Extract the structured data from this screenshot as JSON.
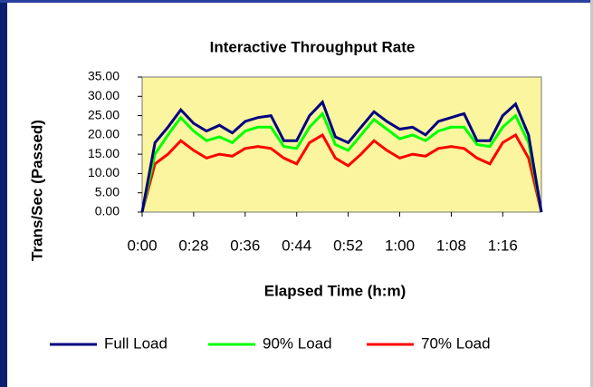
{
  "chart_data": {
    "type": "line",
    "title": "Interactive Throughput Rate",
    "y_label": "Trans/Sec (Passed)",
    "x_label": "Elapsed Time (h:m)",
    "categories": [
      "0:00",
      null,
      null,
      null,
      "0:28",
      null,
      null,
      null,
      "0:36",
      null,
      null,
      null,
      "0:44",
      null,
      null,
      null,
      "0:52",
      null,
      null,
      null,
      "1:00",
      null,
      null,
      null,
      "1:08",
      null,
      null,
      null,
      "1:16",
      null,
      null,
      null
    ],
    "series": [
      {
        "name": "Full Load",
        "color": "#000080",
        "values": [
          0,
          18,
          22,
          26.5,
          23,
          21,
          22.5,
          20.5,
          23.5,
          24.5,
          25,
          18.5,
          18.5,
          25,
          28.5,
          19.5,
          18,
          22,
          26,
          23.5,
          21.5,
          22,
          20,
          23.5,
          24.5,
          25.5,
          18.5,
          18.5,
          25,
          28,
          20,
          0
        ]
      },
      {
        "name": "90% Load",
        "color": "#00ff00",
        "values": [
          0,
          15,
          20,
          24.5,
          21,
          18.5,
          19.5,
          18,
          21,
          22,
          22,
          17,
          16.5,
          22,
          25.5,
          17.5,
          16,
          20,
          24,
          21.5,
          19,
          20,
          18.5,
          21,
          22,
          22,
          17.5,
          17,
          22,
          25,
          18,
          0
        ]
      },
      {
        "name": "70% Load",
        "color": "#ff0000",
        "values": [
          0,
          12.5,
          15,
          18.5,
          16,
          14,
          15,
          14.5,
          16.5,
          17,
          16.5,
          14,
          12.5,
          18,
          20,
          14,
          12,
          15,
          18.5,
          16,
          14,
          15,
          14.5,
          16.5,
          17,
          16.5,
          14,
          12.5,
          18,
          20,
          14,
          0
        ]
      }
    ],
    "ylim": [
      0,
      35
    ],
    "yticks": [
      {
        "value": 0,
        "label": "0.00"
      },
      {
        "value": 5,
        "label": "5.00"
      },
      {
        "value": 10,
        "label": "10.00"
      },
      {
        "value": 15,
        "label": "15.00"
      },
      {
        "value": 20,
        "label": "20.00"
      },
      {
        "value": 25,
        "label": "25.00"
      },
      {
        "value": 30,
        "label": "30.00"
      },
      {
        "value": 35,
        "label": "35.00"
      }
    ],
    "legend": "bottom"
  }
}
